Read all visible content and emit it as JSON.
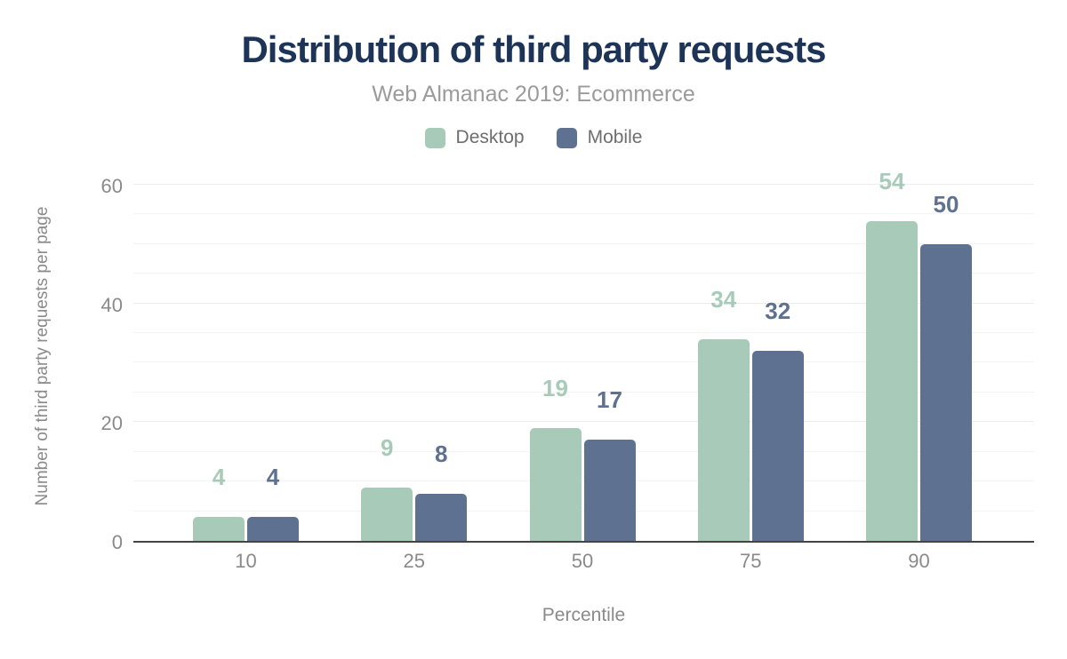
{
  "chart_data": {
    "type": "bar",
    "title": "Distribution of third party requests",
    "subtitle": "Web Almanac 2019: Ecommerce",
    "xlabel": "Percentile",
    "ylabel": "Number of third party requests per page",
    "categories": [
      "10",
      "25",
      "50",
      "75",
      "90"
    ],
    "series": [
      {
        "name": "Desktop",
        "color": "#a8cbb9",
        "values": [
          4,
          9,
          19,
          34,
          54
        ]
      },
      {
        "name": "Mobile",
        "color": "#5e7190",
        "values": [
          4,
          8,
          17,
          32,
          50
        ]
      }
    ],
    "ylim": [
      0,
      62.5
    ],
    "yticks": [
      0,
      20,
      40,
      60
    ],
    "grid_step": 5,
    "grid": "on",
    "legend_position": "top",
    "value_labels": "above-bars"
  },
  "palette": {
    "title_navy": "#1e3456",
    "subtitle_gray": "#9b9b9b",
    "axis_line": "#444444",
    "tick_gray": "#8a8a8a",
    "gridline": "#f4f4f4",
    "desktop_green": "#a8cbb9",
    "mobile_slate": "#5e7190"
  }
}
